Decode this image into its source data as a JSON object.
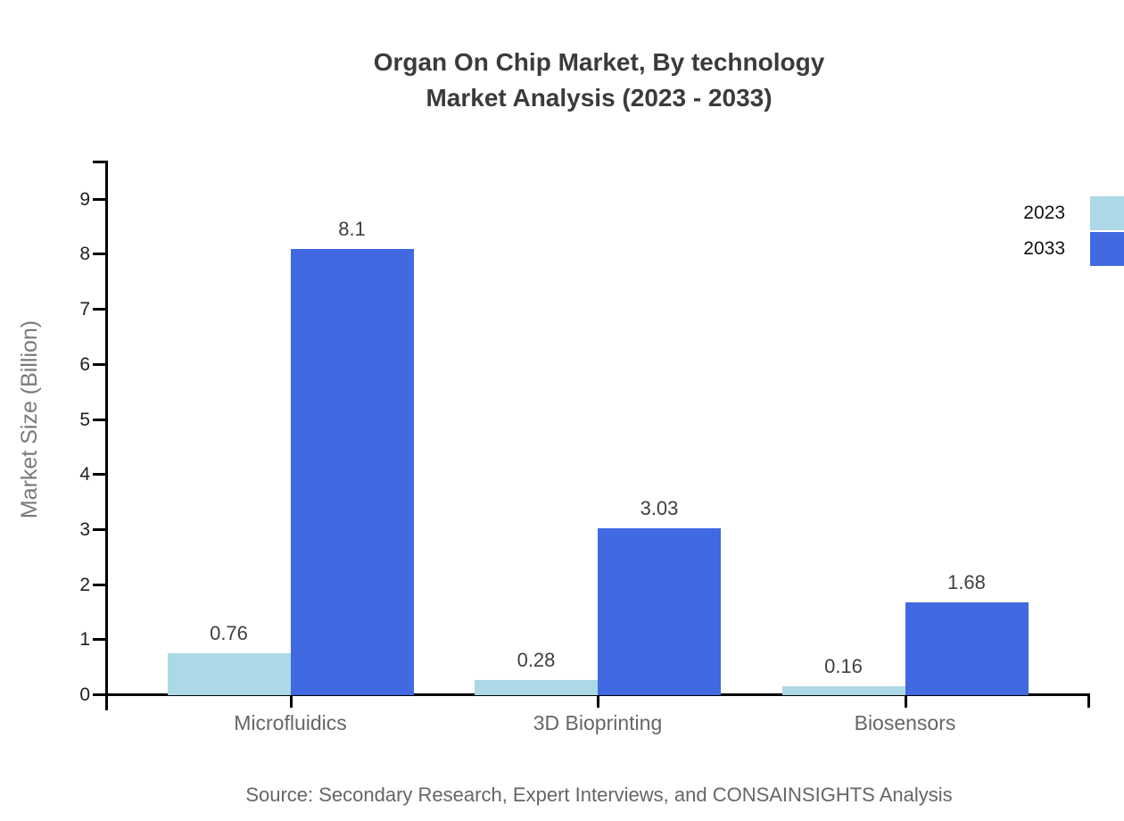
{
  "chart_data": {
    "type": "bar",
    "title": "Organ On Chip Market, By technology Market Analysis (2023 - 2033)",
    "title_line1": "Organ On Chip Market, By technology",
    "title_line2": "Market Analysis (2023 - 2033)",
    "categories": [
      "Microfluidics",
      "3D Bioprinting",
      "Biosensors"
    ],
    "series": [
      {
        "name": "2023",
        "color": "#ADD8E6",
        "values": [
          0.76,
          0.28,
          0.16
        ]
      },
      {
        "name": "2033",
        "color": "#4169E1",
        "values": [
          8.1,
          3.03,
          1.68
        ]
      }
    ],
    "xlabel": "",
    "ylabel": "Market Size (Billion)",
    "ylim": [
      0,
      9.7
    ],
    "yticks": [
      0,
      1,
      2,
      3,
      4,
      5,
      6,
      7,
      8,
      9
    ],
    "grid": false,
    "legend_position": "top-right",
    "value_labels_shown": true,
    "source": "Source: Secondary Research, Expert Interviews, and CONSAINSIGHTS Analysis",
    "colors": {
      "axis": "#000000",
      "title_text": "#3b3b3b",
      "tick_text": "#1f1f1f",
      "muted_text": "#666666",
      "value_label_text": "#3d4043"
    }
  }
}
